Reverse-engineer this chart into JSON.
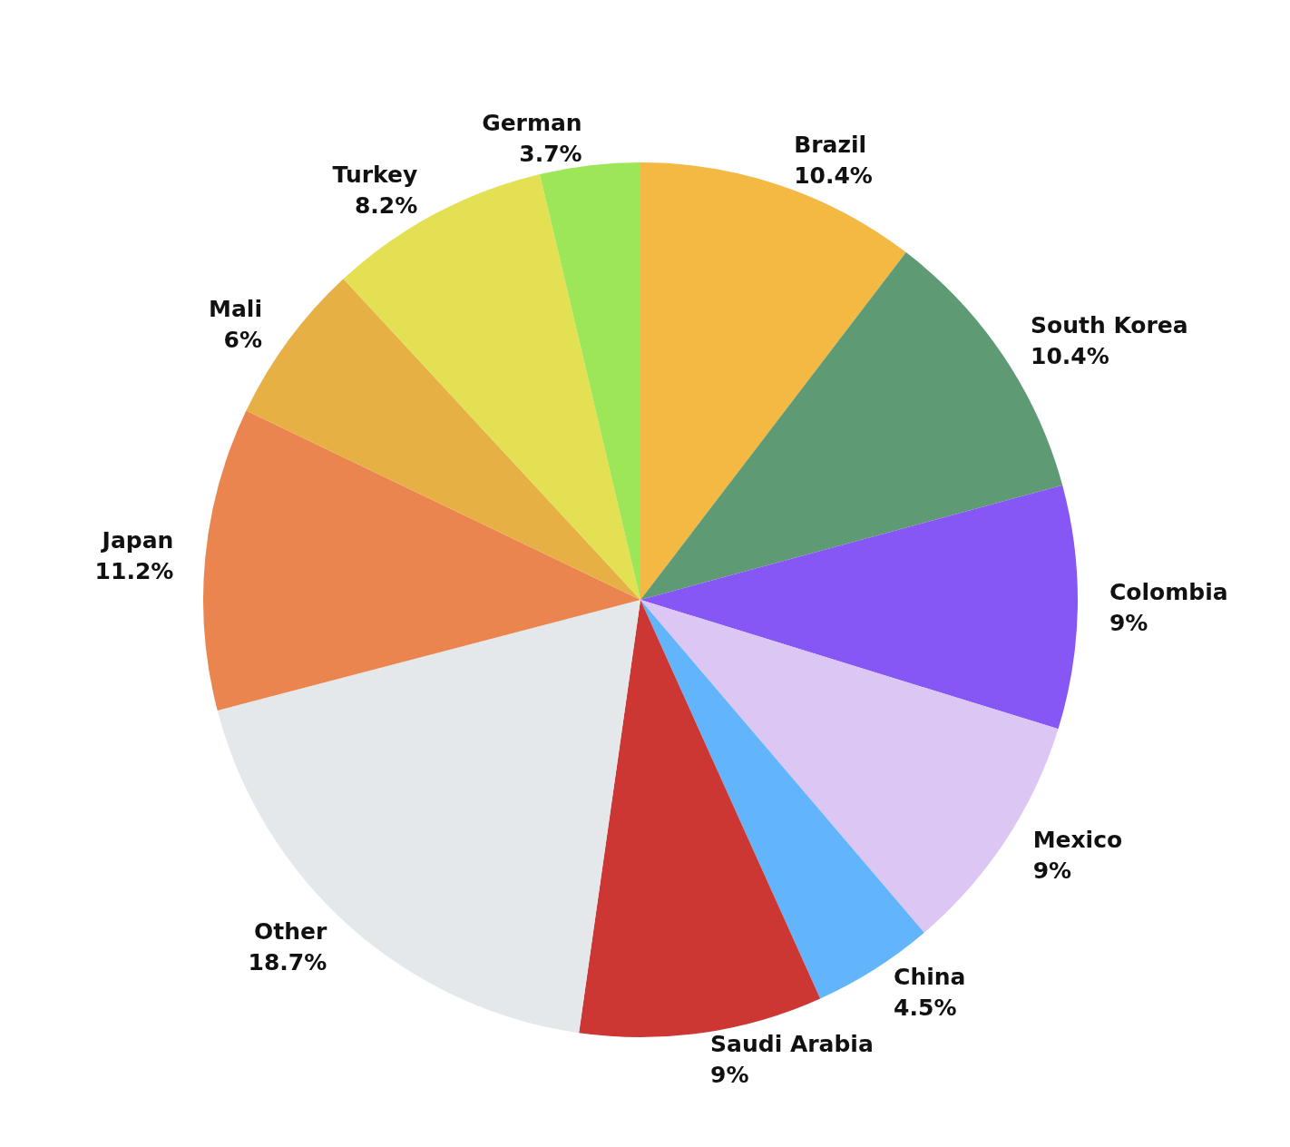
{
  "chart_data": {
    "type": "pie",
    "categories": [
      "Brazil",
      "South Korea",
      "Colombia",
      "Mexico",
      "China",
      "Saudi Arabia",
      "Other",
      "Japan",
      "Mali",
      "Turkey",
      "German"
    ],
    "values": [
      10.4,
      10.4,
      9,
      9,
      4.5,
      9,
      18.7,
      11.2,
      6,
      8.2,
      3.7
    ],
    "value_labels": [
      "10.4%",
      "10.4%",
      "9%",
      "9%",
      "4.5%",
      "9%",
      "18.7%",
      "11.2%",
      "6%",
      "8.2%",
      "3.7%"
    ],
    "colors": [
      "#f3b942",
      "#5e9b75",
      "#8757f6",
      "#dcc6f3",
      "#62b5fb",
      "#cc3633",
      "#e5e8eb",
      "#ea8550",
      "#e6b044",
      "#e3e053",
      "#9de658"
    ],
    "legend": false
  }
}
